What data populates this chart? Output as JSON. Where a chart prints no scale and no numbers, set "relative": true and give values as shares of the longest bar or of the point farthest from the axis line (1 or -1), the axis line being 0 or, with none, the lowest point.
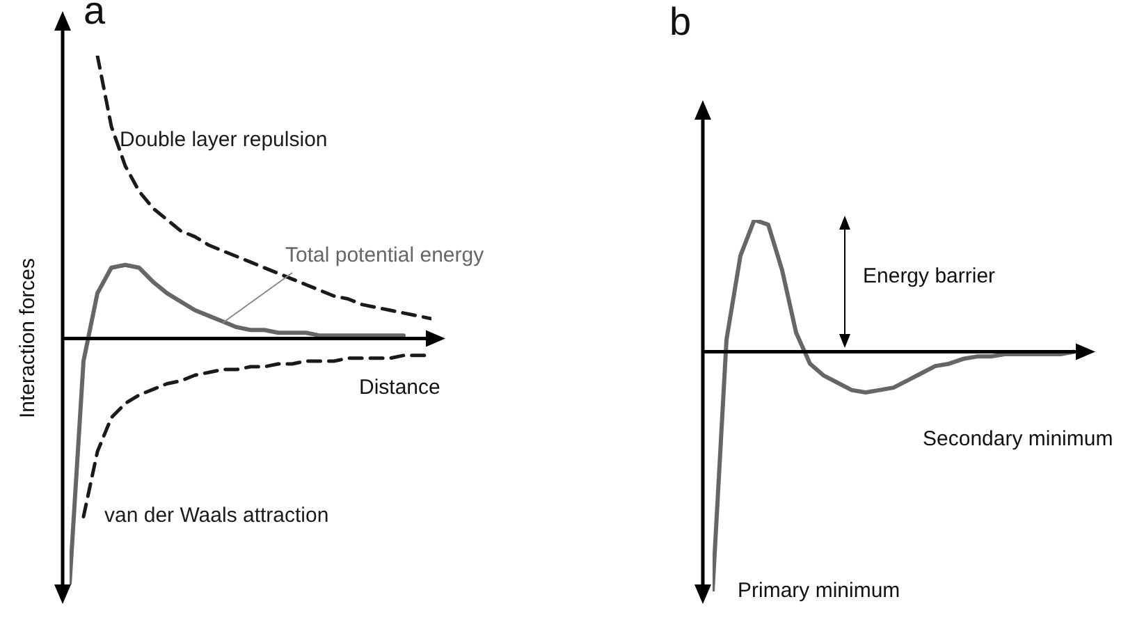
{
  "chart_data": [
    {
      "type": "line",
      "title": "a",
      "xlabel": "Distance",
      "ylabel": "Interaction forces",
      "relative": true,
      "tick_labels": false,
      "marker": "none",
      "categories": [
        null,
        null,
        null,
        null,
        null,
        null,
        null,
        null,
        null,
        null,
        null,
        null,
        null,
        null,
        null,
        null,
        null,
        null,
        null,
        null,
        null,
        null,
        null,
        null,
        null,
        null,
        null
      ],
      "series": [
        {
          "name": "Double layer repulsion",
          "color": "#1a1a1a",
          "line_style": "dashed",
          "values": [
            null,
            null,
            1,
            0.75,
            0.61,
            0.52,
            0.46,
            0.42,
            0.38,
            0.36,
            0.33,
            0.31,
            0.29,
            0.27,
            0.25,
            0.23,
            0.21,
            0.19,
            0.17,
            0.15,
            0.14,
            0.12,
            0.11,
            0.1,
            0.09,
            0.08,
            0.07
          ]
        },
        {
          "name": "van der Waals attraction",
          "color": "#1a1a1a",
          "line_style": "dashed",
          "values": [
            null,
            -0.63,
            -0.4,
            -0.28,
            -0.23,
            -0.2,
            -0.18,
            -0.16,
            -0.15,
            -0.13,
            -0.12,
            -0.11,
            -0.11,
            -0.1,
            -0.1,
            -0.09,
            -0.09,
            -0.08,
            -0.08,
            -0.08,
            -0.07,
            -0.07,
            -0.07,
            -0.07,
            -0.06,
            -0.06,
            -0.06
          ]
        },
        {
          "name": "Total potential energy",
          "color": "#666666",
          "line_style": "solid",
          "values": [
            -0.87,
            -0.08,
            0.16,
            0.25,
            0.26,
            0.25,
            0.2,
            0.16,
            0.13,
            0.1,
            0.08,
            0.06,
            0.04,
            0.03,
            0.03,
            0.02,
            0.02,
            0.02,
            0.01,
            0.01,
            0.01,
            0.01,
            0.01,
            0.01,
            0.01,
            null,
            null
          ]
        }
      ]
    },
    {
      "type": "line",
      "title": "b",
      "relative": true,
      "tick_labels": false,
      "marker": "none",
      "annotations": [
        "Energy barrier",
        "Secondary minimum",
        "Primary minimum"
      ],
      "categories": [
        null,
        null,
        null,
        null,
        null,
        null,
        null,
        null,
        null,
        null,
        null,
        null,
        null,
        null,
        null,
        null,
        null,
        null,
        null,
        null,
        null,
        null,
        null,
        null,
        null,
        null,
        null
      ],
      "series": [
        {
          "color": "#666666",
          "line_style": "solid",
          "values": [
            -1,
            0.05,
            0.4,
            0.55,
            0.53,
            0.34,
            0.08,
            -0.05,
            -0.1,
            -0.13,
            -0.16,
            -0.17,
            -0.16,
            -0.15,
            -0.12,
            -0.09,
            -0.06,
            -0.05,
            -0.03,
            -0.02,
            -0.02,
            -0.01,
            -0.01,
            -0.01,
            -0.01,
            -0.01,
            0
          ]
        }
      ]
    }
  ]
}
